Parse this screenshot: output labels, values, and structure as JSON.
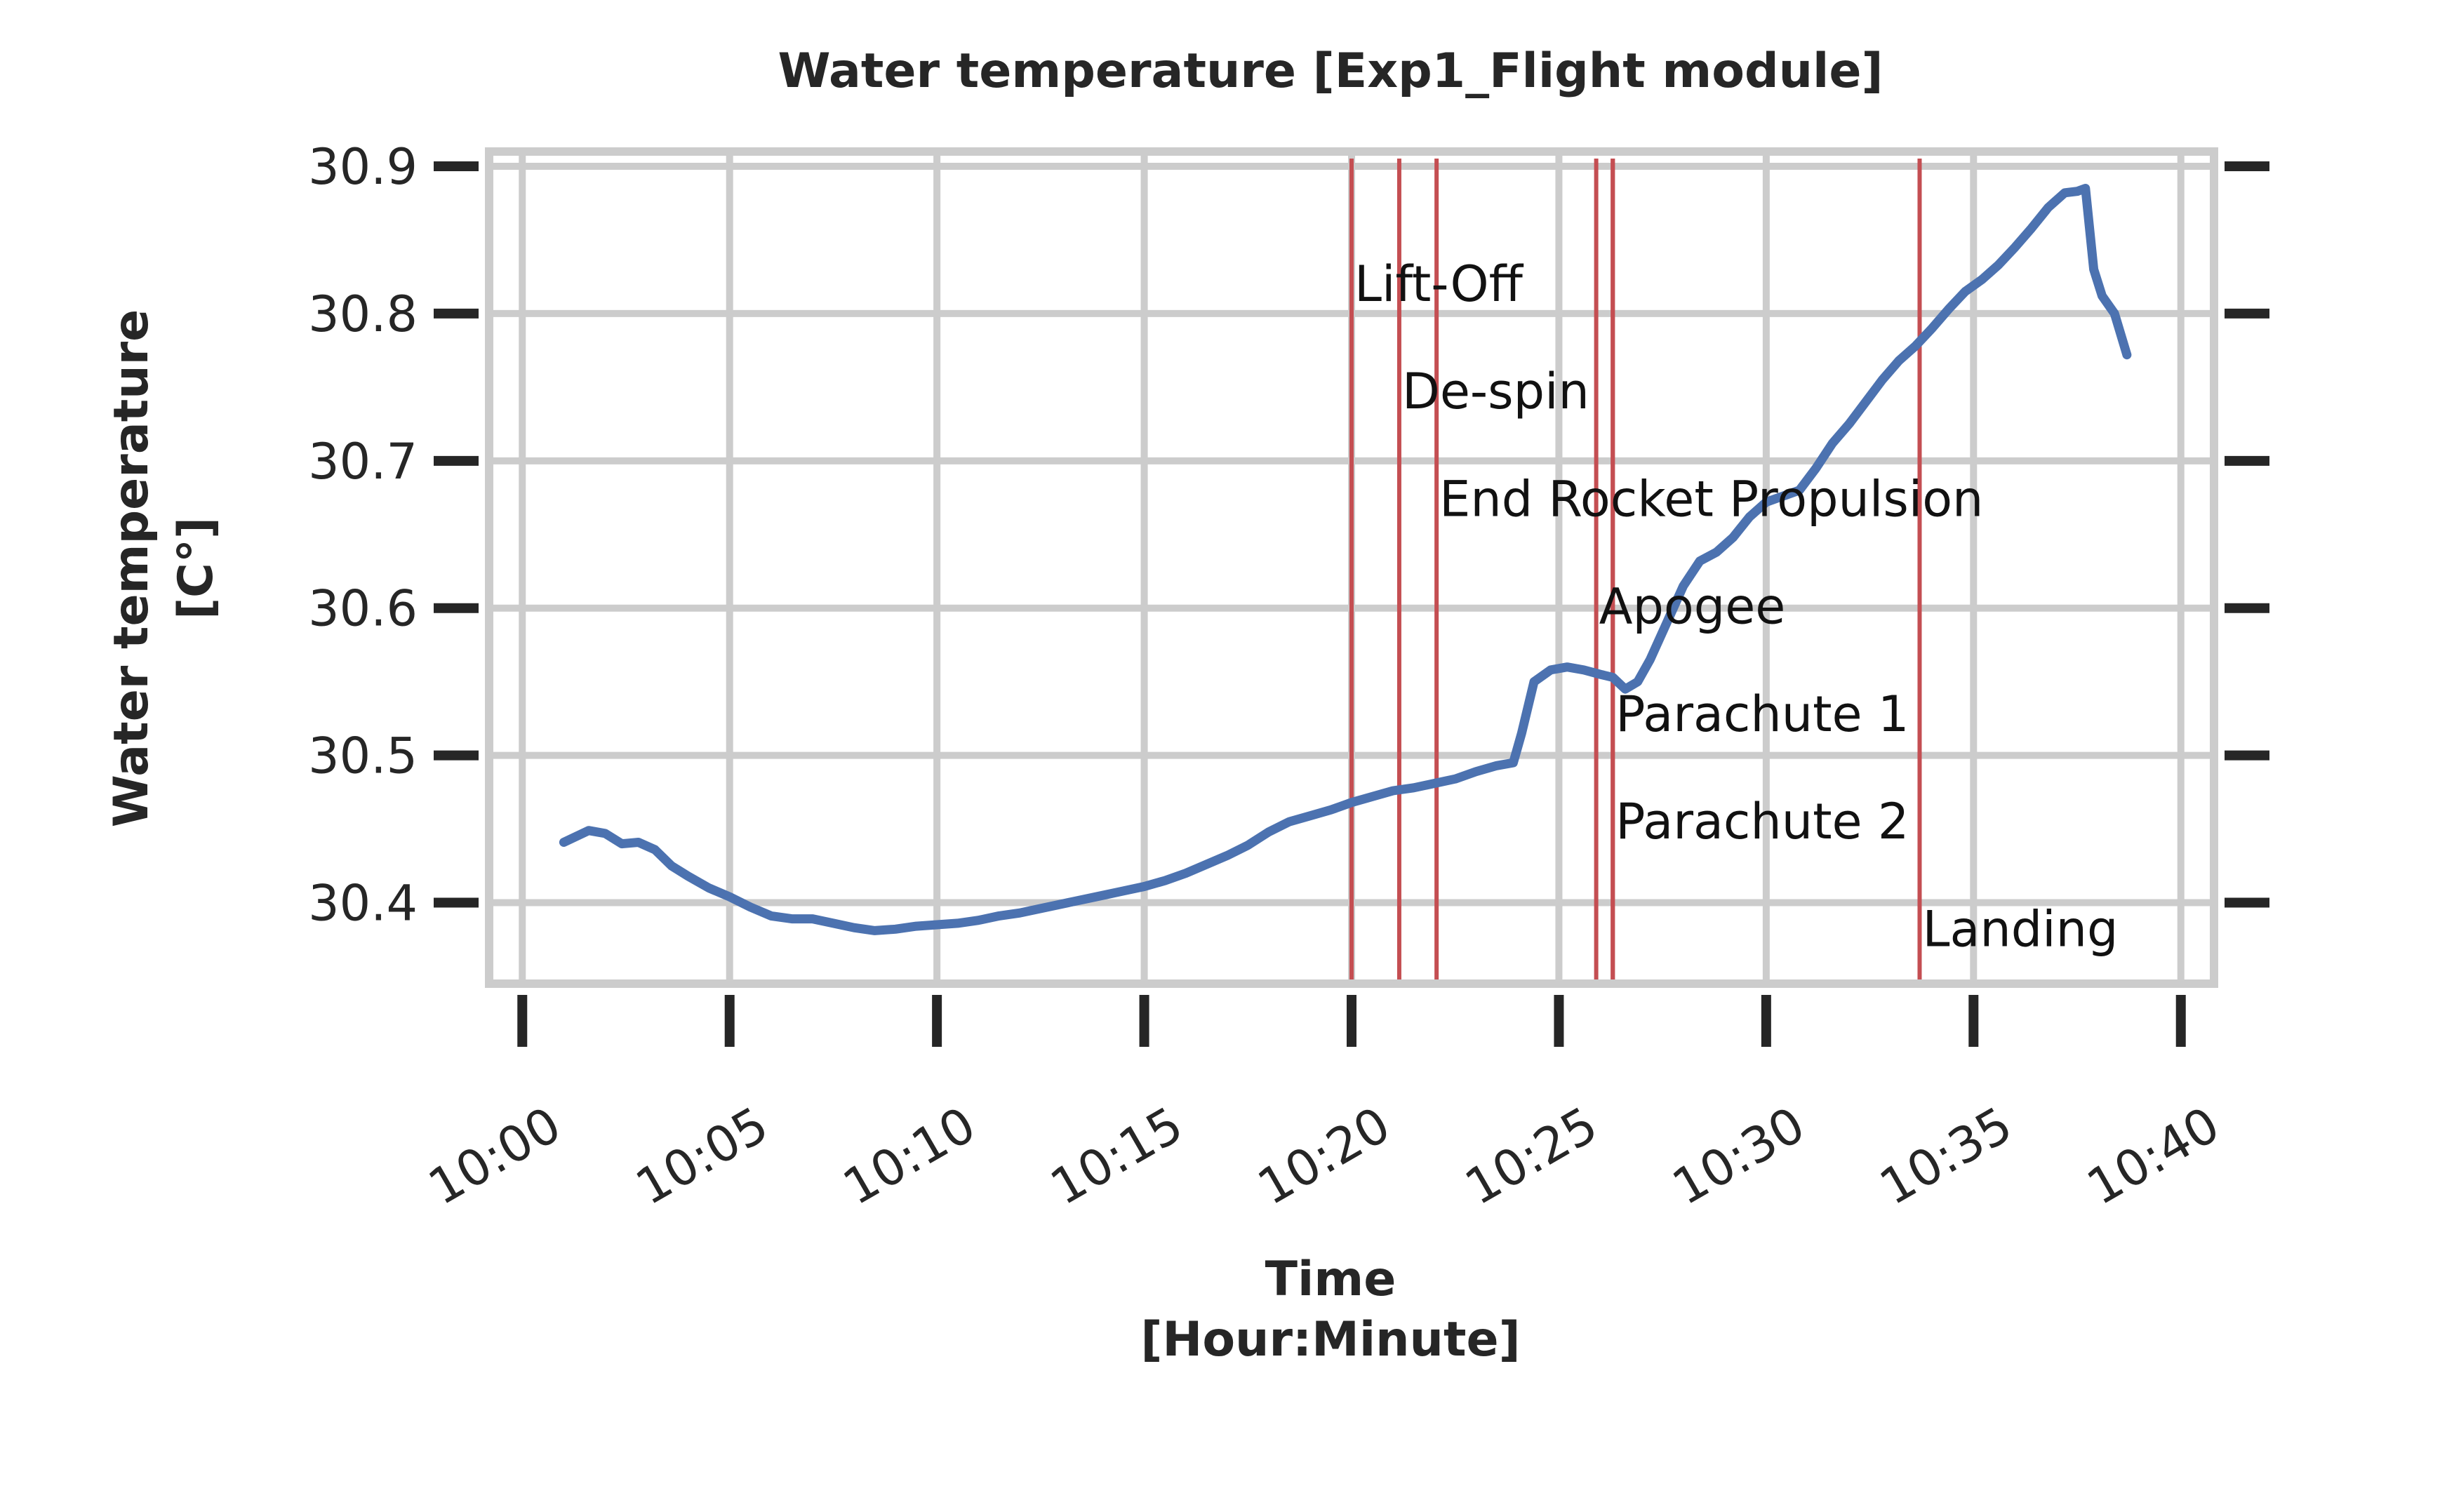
{
  "chart_data": {
    "type": "line",
    "title": "Water temperature [Exp1_Flight module]",
    "xlabel_line1": "Time",
    "xlabel_line2": "[Hour:Minute]",
    "ylabel_line1": "Water temperature",
    "ylabel_line2": "[C°]",
    "xlim": [
      -0.8,
      40.8
    ],
    "ylim": [
      30.345,
      30.91
    ],
    "grid": true,
    "x_ticks": [
      {
        "value": 0,
        "label": "10:00"
      },
      {
        "value": 5,
        "label": "10:05"
      },
      {
        "value": 10,
        "label": "10:10"
      },
      {
        "value": 15,
        "label": "10:15"
      },
      {
        "value": 20,
        "label": "10:20"
      },
      {
        "value": 25,
        "label": "10:25"
      },
      {
        "value": 30,
        "label": "10:30"
      },
      {
        "value": 35,
        "label": "10:35"
      },
      {
        "value": 40,
        "label": "10:40"
      }
    ],
    "y_ticks": [
      {
        "value": 30.4,
        "label": "30.4"
      },
      {
        "value": 30.5,
        "label": "30.5"
      },
      {
        "value": 30.6,
        "label": "30.6"
      },
      {
        "value": 30.7,
        "label": "30.7"
      },
      {
        "value": 30.8,
        "label": "30.8"
      },
      {
        "value": 30.9,
        "label": "30.9"
      }
    ],
    "events": [
      {
        "label": "Lift-Off",
        "x": 20.0,
        "label_y": 30.82
      },
      {
        "label": "De-spin",
        "x": 21.15,
        "label_y": 30.747
      },
      {
        "label": "End Rocket Propulsion",
        "x": 22.05,
        "label_y": 30.674
      },
      {
        "label": "Apogee",
        "x": 25.9,
        "label_y": 30.601
      },
      {
        "label": "Parachute 1",
        "x": 26.3,
        "label_y": 30.528
      },
      {
        "label": "Parachute 2",
        "x": 26.3,
        "label_y": 30.455
      },
      {
        "label": "Landing",
        "x": 33.7,
        "label_y": 30.382
      }
    ],
    "series": [
      {
        "color": "#4c72b0",
        "x": [
          1.0,
          1.3,
          1.6,
          2.0,
          2.4,
          2.8,
          3.2,
          3.6,
          4.0,
          4.5,
          5.0,
          5.5,
          6.0,
          6.5,
          7.0,
          7.5,
          8.0,
          8.5,
          9.0,
          9.5,
          10.0,
          10.5,
          11.0,
          11.5,
          12.0,
          12.5,
          13.0,
          13.5,
          14.0,
          14.5,
          15.0,
          15.5,
          16.0,
          16.5,
          17.0,
          17.5,
          18.0,
          18.5,
          19.0,
          19.5,
          20.0,
          20.5,
          21.0,
          21.5,
          22.0,
          22.5,
          23.0,
          23.5,
          23.9,
          24.1,
          24.4,
          24.8,
          25.2,
          25.6,
          26.0,
          26.3,
          26.6,
          26.9,
          27.2,
          27.6,
          28.0,
          28.4,
          28.8,
          29.2,
          29.6,
          30.0,
          30.4,
          30.8,
          31.2,
          31.6,
          32.0,
          32.4,
          32.8,
          33.2,
          33.6,
          34.0,
          34.4,
          34.8,
          35.2,
          35.6,
          36.0,
          36.4,
          36.8,
          37.2,
          37.5,
          37.7,
          37.9,
          38.1,
          38.4,
          38.7
        ],
        "y": [
          30.441,
          30.445,
          30.449,
          30.447,
          30.44,
          30.441,
          30.436,
          30.425,
          30.418,
          30.41,
          30.404,
          30.397,
          30.391,
          30.389,
          30.389,
          30.386,
          30.383,
          30.381,
          30.382,
          30.384,
          30.385,
          30.386,
          30.388,
          30.391,
          30.393,
          30.396,
          30.399,
          30.402,
          30.405,
          30.408,
          30.411,
          30.415,
          30.42,
          30.426,
          30.432,
          30.439,
          30.448,
          30.455,
          30.459,
          30.463,
          30.468,
          30.472,
          30.476,
          30.478,
          30.481,
          30.484,
          30.489,
          30.493,
          30.495,
          30.515,
          30.55,
          30.558,
          30.56,
          30.558,
          30.555,
          30.553,
          30.545,
          30.55,
          30.565,
          30.59,
          30.615,
          30.632,
          30.638,
          30.648,
          30.662,
          30.672,
          30.676,
          30.68,
          30.695,
          30.712,
          30.725,
          30.74,
          30.755,
          30.768,
          30.778,
          30.79,
          30.803,
          30.815,
          30.823,
          30.833,
          30.845,
          30.858,
          30.872,
          30.882,
          30.883,
          30.885,
          30.83,
          30.812,
          30.8,
          30.772
        ]
      }
    ]
  }
}
